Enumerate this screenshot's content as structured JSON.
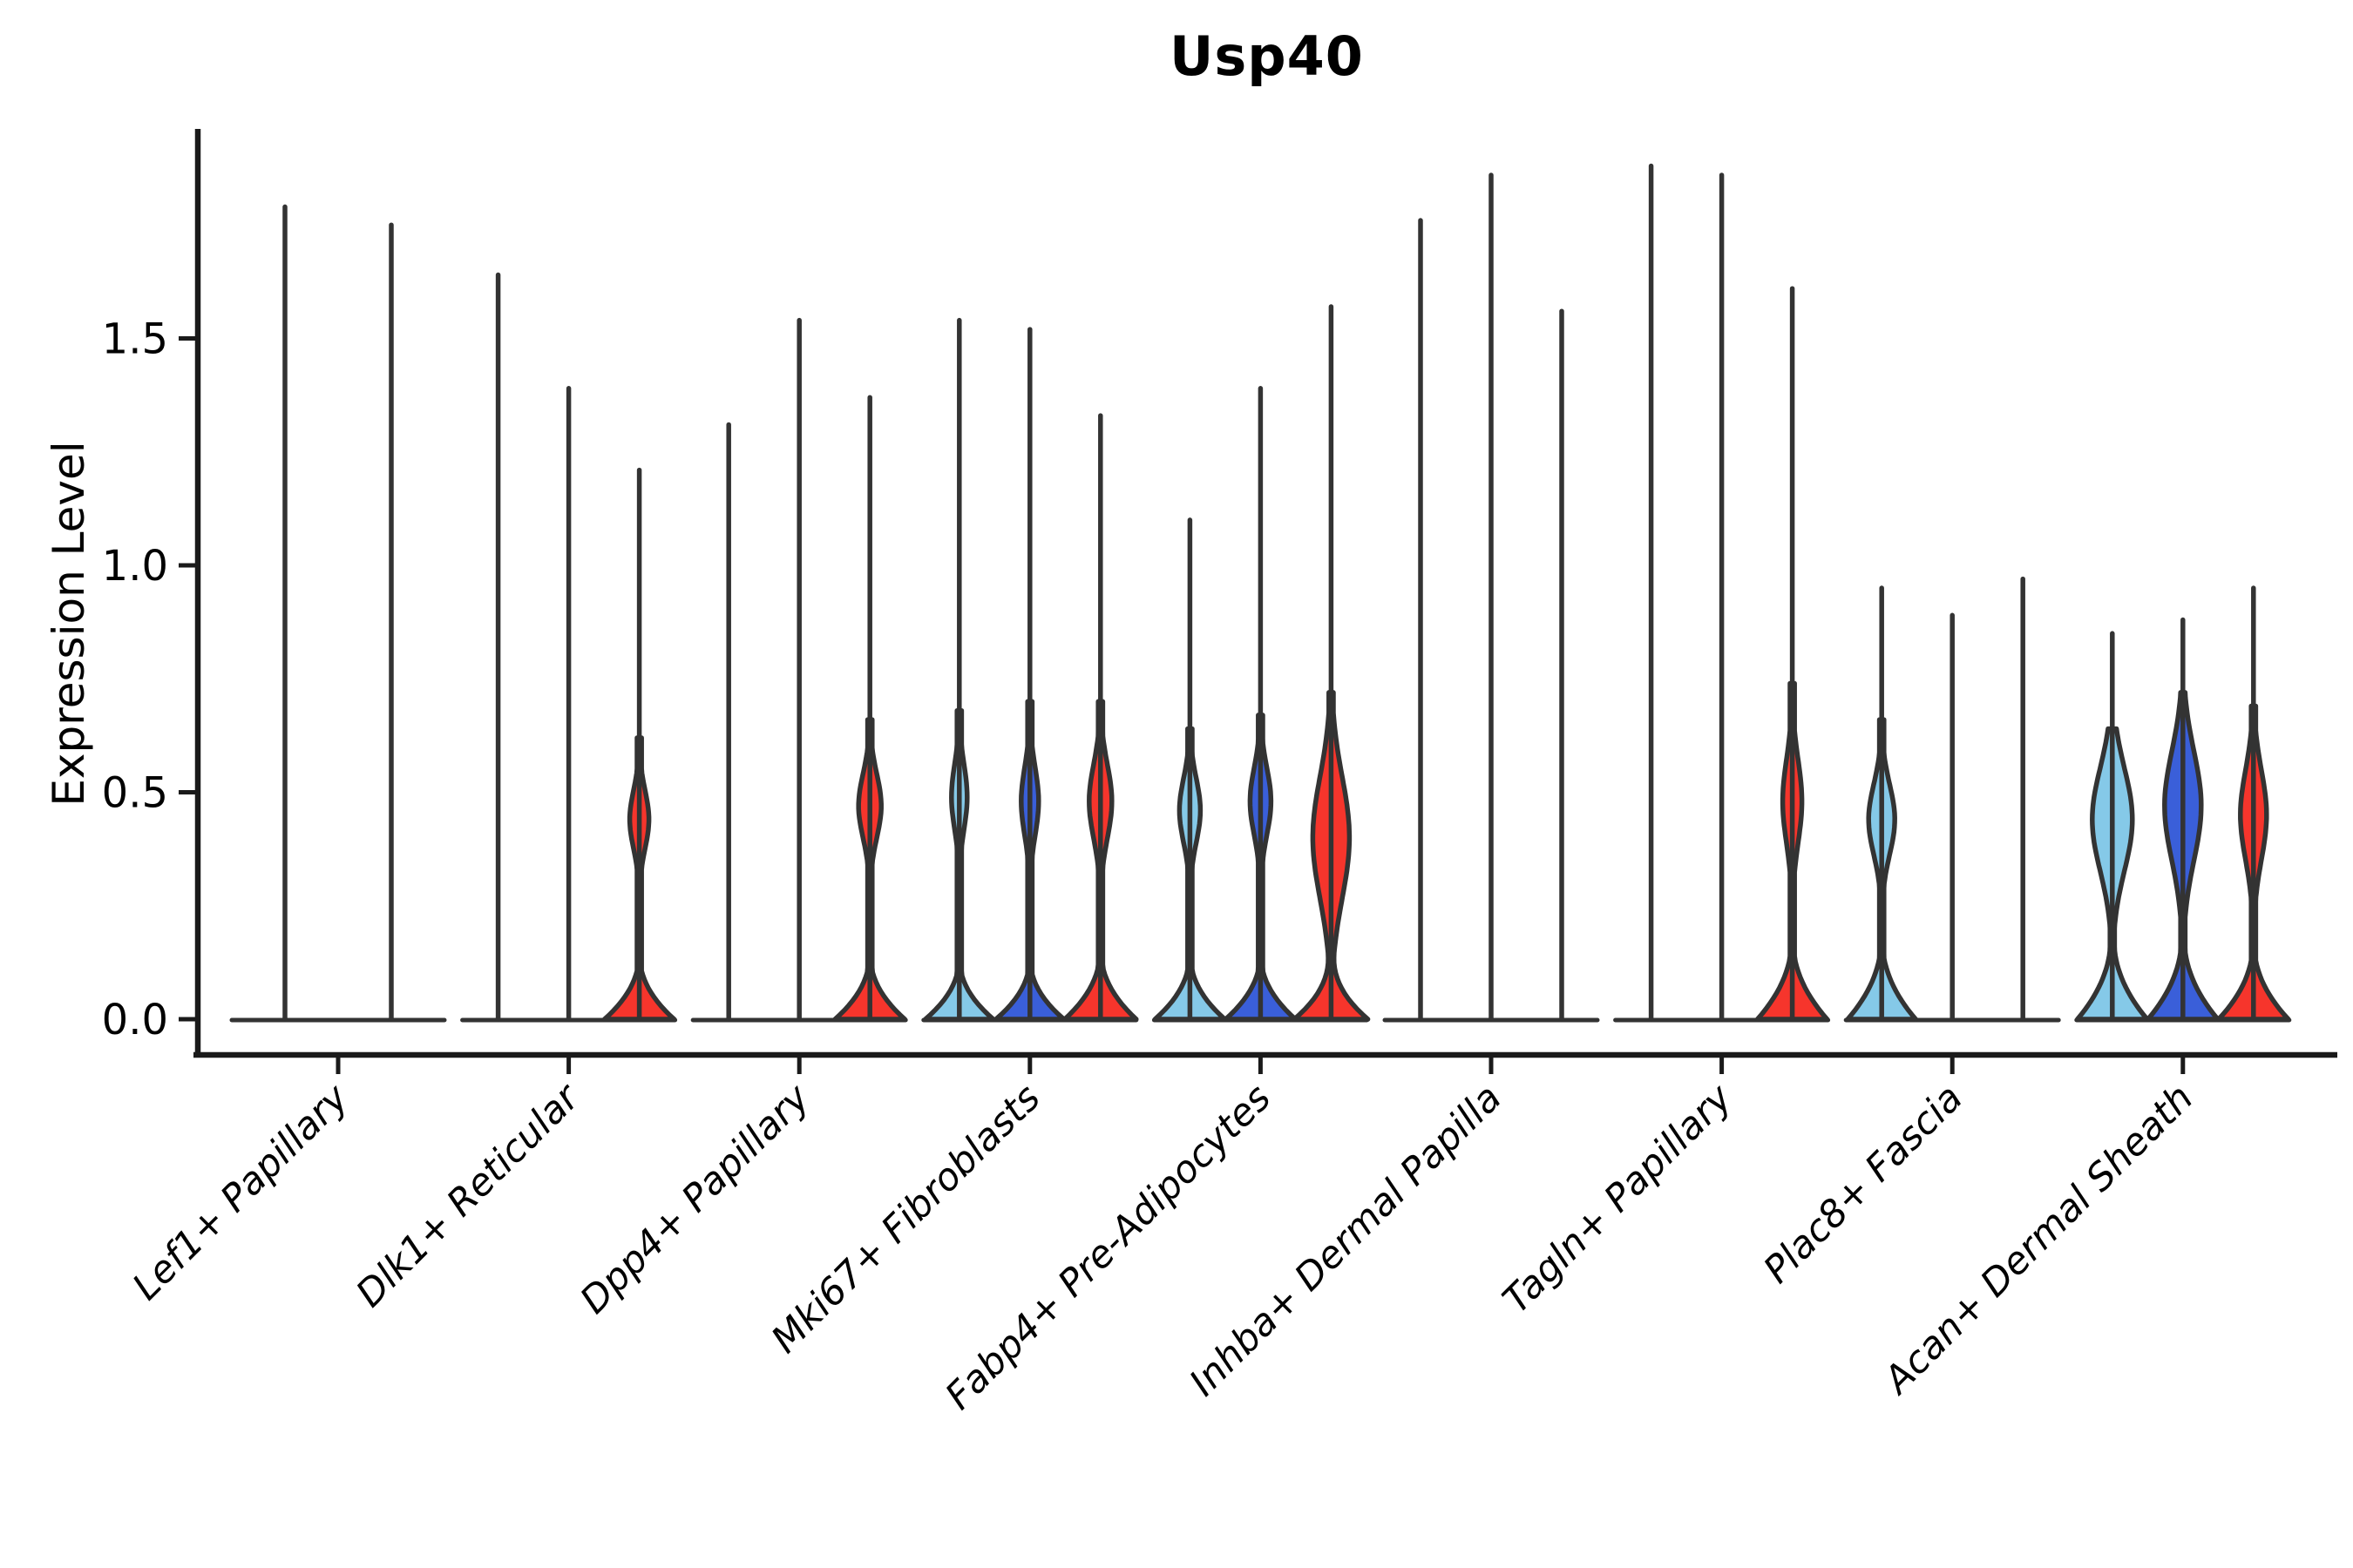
{
  "chart_data": {
    "type": "violin",
    "title": "Usp40",
    "ylabel": "Expression Level",
    "xlabel": "",
    "legend_position": "none",
    "grid": false,
    "ytick_labels": [
      "0.0",
      "0.5",
      "1.0",
      "1.5"
    ],
    "ytick_values": [
      0.0,
      0.5,
      1.0,
      1.5
    ],
    "ylim": [
      -0.08,
      1.96
    ],
    "series_colors": {
      "lightblue": "#85C9E8",
      "blue": "#3A5FD9",
      "red": "#F6352C",
      "outline": "#333333",
      "axis": "#1A1A1A"
    },
    "categories": [
      "Lef1+ Papillary",
      "Dlk1+ Reticular",
      "Dpp4+ Papillary",
      "Mki67+ Fibroblasts",
      "Fabp4+ Pre-Adipocytes",
      "Inhba+ Dermal Papilla",
      "Tagln+ Papillary",
      "Plac8+ Fascia",
      "Acan+ Dermal Sheath"
    ],
    "groups": [
      {
        "category": "Lef1+ Papillary",
        "violins": [
          {
            "color": null,
            "max": 1.79,
            "body": null
          },
          {
            "color": null,
            "max": 1.75,
            "body": null
          }
        ]
      },
      {
        "category": "Dlk1+ Reticular",
        "violins": [
          {
            "color": null,
            "max": 1.64,
            "body": null
          },
          {
            "color": null,
            "max": 1.39,
            "body": null
          },
          {
            "color": "red",
            "max": 1.21,
            "body": {
              "peak": 0.44,
              "sigma": 0.09,
              "lens_hw": 11,
              "base_h": 0.15,
              "base_hw": 40,
              "top": 0.62
            }
          }
        ]
      },
      {
        "category": "Dpp4+ Papillary",
        "violins": [
          {
            "color": null,
            "max": 1.31,
            "body": null
          },
          {
            "color": null,
            "max": 1.54,
            "body": null
          },
          {
            "color": "red",
            "max": 1.37,
            "body": {
              "peak": 0.47,
              "sigma": 0.1,
              "lens_hw": 13,
              "base_h": 0.15,
              "base_hw": 40,
              "top": 0.66
            }
          }
        ]
      },
      {
        "category": "Mki67+ Fibroblasts",
        "violins": [
          {
            "color": "lightblue",
            "max": 1.54,
            "body": {
              "peak": 0.49,
              "sigma": 0.1,
              "lens_hw": 9,
              "base_h": 0.14,
              "base_hw": 39,
              "top": 0.68
            }
          },
          {
            "color": "blue",
            "max": 1.52,
            "body": {
              "peak": 0.48,
              "sigma": 0.105,
              "lens_hw": 10,
              "base_h": 0.14,
              "base_hw": 39,
              "top": 0.7
            }
          },
          {
            "color": "red",
            "max": 1.33,
            "body": {
              "peak": 0.48,
              "sigma": 0.115,
              "lens_hw": 13,
              "base_h": 0.16,
              "base_hw": 41,
              "top": 0.7
            }
          }
        ]
      },
      {
        "category": "Fabp4+ Pre-Adipocytes",
        "violins": [
          {
            "color": "lightblue",
            "max": 1.1,
            "body": {
              "peak": 0.46,
              "sigma": 0.1,
              "lens_hw": 12,
              "base_h": 0.15,
              "base_hw": 40,
              "top": 0.64
            }
          },
          {
            "color": "blue",
            "max": 1.39,
            "body": {
              "peak": 0.48,
              "sigma": 0.105,
              "lens_hw": 12,
              "base_h": 0.15,
              "base_hw": 40,
              "top": 0.67
            }
          },
          {
            "color": "red",
            "max": 1.57,
            "body": {
              "peak": 0.4,
              "sigma": 0.19,
              "lens_hw": 21,
              "base_h": 0.15,
              "base_hw": 42,
              "top": 0.72
            }
          }
        ]
      },
      {
        "category": "Inhba+ Dermal Papilla",
        "violins": [
          {
            "color": null,
            "max": 1.76,
            "body": null
          },
          {
            "color": null,
            "max": 1.86,
            "body": null
          },
          {
            "color": null,
            "max": 1.56,
            "body": null
          }
        ]
      },
      {
        "category": "Tagln+ Papillary",
        "violins": [
          {
            "color": null,
            "max": 1.88,
            "body": null
          },
          {
            "color": null,
            "max": 1.86,
            "body": null
          },
          {
            "color": "red",
            "max": 1.61,
            "body": {
              "peak": 0.48,
              "sigma": 0.13,
              "lens_hw": 11,
              "base_h": 0.19,
              "base_hw": 40,
              "top": 0.74
            }
          }
        ]
      },
      {
        "category": "Plac8+ Fascia",
        "violins": [
          {
            "color": "lightblue",
            "max": 0.95,
            "body": {
              "peak": 0.44,
              "sigma": 0.11,
              "lens_hw": 15,
              "base_h": 0.19,
              "base_hw": 39,
              "top": 0.66
            }
          },
          {
            "color": null,
            "max": 0.89,
            "body": null
          },
          {
            "color": null,
            "max": 0.97,
            "body": null
          }
        ]
      },
      {
        "category": "Acan+ Dermal Sheath",
        "violins": [
          {
            "color": "lightblue",
            "max": 0.85,
            "body": {
              "peak": 0.44,
              "sigma": 0.16,
              "lens_hw": 23,
              "base_h": 0.2,
              "base_hw": 40,
              "top": 0.64
            }
          },
          {
            "color": "blue",
            "max": 0.88,
            "body": {
              "peak": 0.47,
              "sigma": 0.17,
              "lens_hw": 21,
              "base_h": 0.2,
              "base_hw": 40,
              "top": 0.72
            }
          },
          {
            "color": "red",
            "max": 0.95,
            "body": {
              "peak": 0.45,
              "sigma": 0.14,
              "lens_hw": 15,
              "base_h": 0.18,
              "base_hw": 40,
              "top": 0.69
            }
          }
        ]
      }
    ]
  }
}
